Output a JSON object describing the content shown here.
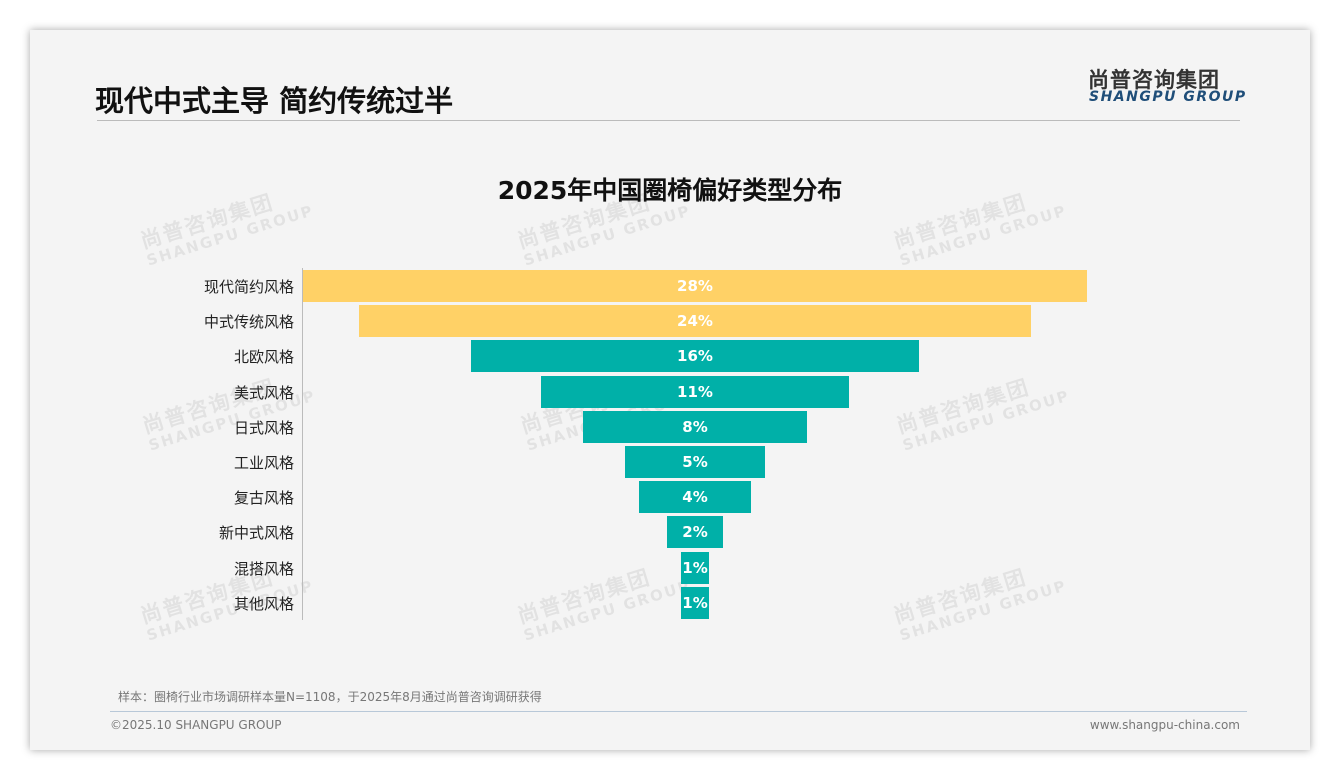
{
  "header": {
    "title": "现代中式主导 简约传统过半",
    "logo_cn": "尚普咨询集团",
    "logo_en": "SHANGPU GROUP"
  },
  "watermark": {
    "cn": "尚普咨询集团",
    "en": "SHANGPU GROUP"
  },
  "chart_data": {
    "type": "bar",
    "orientation": "horizontal-funnel",
    "title": "2025年中国圈椅偏好类型分布",
    "categories": [
      "现代简约风格",
      "中式传统风格",
      "北欧风格",
      "美式风格",
      "日式风格",
      "工业风格",
      "复古风格",
      "新中式风格",
      "混搭风格",
      "其他风格"
    ],
    "values": [
      28,
      24,
      16,
      11,
      8,
      5,
      4,
      2,
      1,
      1
    ],
    "labels": [
      "28%",
      "24%",
      "16%",
      "11%",
      "8%",
      "5%",
      "4%",
      "2%",
      "1%",
      "1%"
    ],
    "colors": [
      "#ffd166",
      "#ffd166",
      "#00b0a8",
      "#00b0a8",
      "#00b0a8",
      "#00b0a8",
      "#00b0a8",
      "#00b0a8",
      "#00b0a8",
      "#00b0a8"
    ],
    "unit": "%"
  },
  "footer": {
    "note": "样本：圈椅行业市场调研样本量N=1108，于2025年8月通过尚普咨询调研获得",
    "copyright": "©2025.10 SHANGPU GROUP",
    "website": "www.shangpu-china.com"
  }
}
